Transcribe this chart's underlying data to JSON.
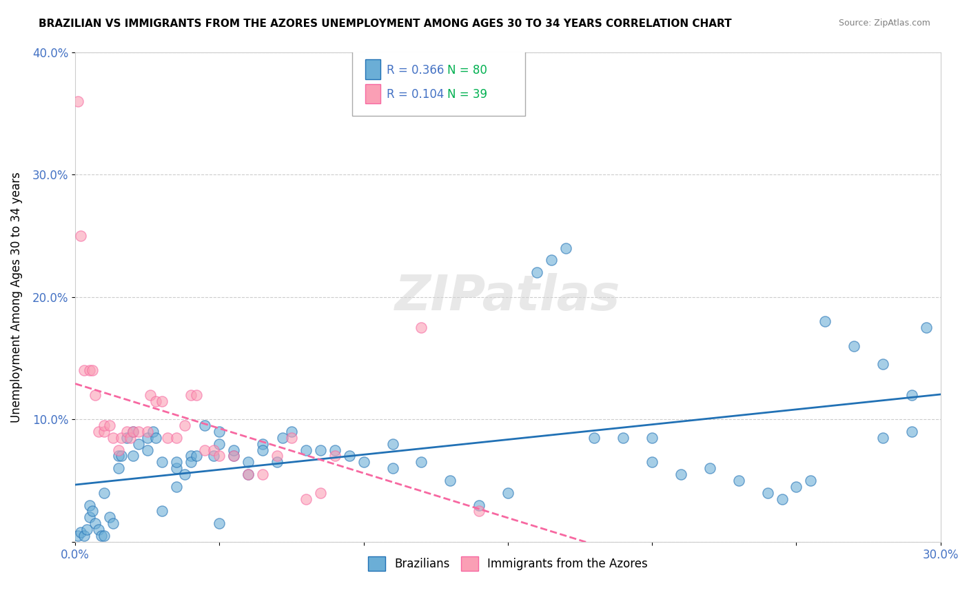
{
  "title": "BRAZILIAN VS IMMIGRANTS FROM THE AZORES UNEMPLOYMENT AMONG AGES 30 TO 34 YEARS CORRELATION CHART",
  "source": "Source: ZipAtlas.com",
  "ylabel": "Unemployment Among Ages 30 to 34 years",
  "xlabel": "",
  "xlim": [
    0,
    0.3
  ],
  "ylim": [
    0,
    0.4
  ],
  "xticks": [
    0.0,
    0.05,
    0.1,
    0.15,
    0.2,
    0.25,
    0.3
  ],
  "xtick_labels": [
    "0.0%",
    "",
    "",
    "",
    "",
    "",
    "30.0%"
  ],
  "yticks": [
    0.0,
    0.1,
    0.2,
    0.3,
    0.4
  ],
  "ytick_labels": [
    "",
    "10.0%",
    "20.0%",
    "30.0%",
    "40.0%"
  ],
  "watermark": "ZIPatlas",
  "legend_r1": "R = 0.366",
  "legend_n1": "N = 80",
  "legend_r2": "R = 0.104",
  "legend_n2": "N = 39",
  "color_blue": "#6baed6",
  "color_pink": "#fa9fb5",
  "line_color_blue": "#2171b5",
  "line_color_pink": "#f768a1",
  "blue_points": [
    [
      0.001,
      0.005
    ],
    [
      0.002,
      0.008
    ],
    [
      0.003,
      0.005
    ],
    [
      0.004,
      0.01
    ],
    [
      0.005,
      0.02
    ],
    [
      0.005,
      0.03
    ],
    [
      0.006,
      0.025
    ],
    [
      0.007,
      0.015
    ],
    [
      0.008,
      0.01
    ],
    [
      0.009,
      0.005
    ],
    [
      0.01,
      0.005
    ],
    [
      0.01,
      0.04
    ],
    [
      0.012,
      0.02
    ],
    [
      0.013,
      0.015
    ],
    [
      0.015,
      0.07
    ],
    [
      0.015,
      0.06
    ],
    [
      0.016,
      0.07
    ],
    [
      0.018,
      0.085
    ],
    [
      0.02,
      0.07
    ],
    [
      0.02,
      0.09
    ],
    [
      0.022,
      0.08
    ],
    [
      0.025,
      0.075
    ],
    [
      0.025,
      0.085
    ],
    [
      0.027,
      0.09
    ],
    [
      0.028,
      0.085
    ],
    [
      0.03,
      0.065
    ],
    [
      0.03,
      0.025
    ],
    [
      0.035,
      0.06
    ],
    [
      0.035,
      0.065
    ],
    [
      0.035,
      0.045
    ],
    [
      0.038,
      0.055
    ],
    [
      0.04,
      0.07
    ],
    [
      0.04,
      0.065
    ],
    [
      0.042,
      0.07
    ],
    [
      0.045,
      0.095
    ],
    [
      0.048,
      0.07
    ],
    [
      0.05,
      0.08
    ],
    [
      0.05,
      0.09
    ],
    [
      0.055,
      0.07
    ],
    [
      0.055,
      0.075
    ],
    [
      0.06,
      0.055
    ],
    [
      0.06,
      0.065
    ],
    [
      0.065,
      0.08
    ],
    [
      0.065,
      0.075
    ],
    [
      0.07,
      0.065
    ],
    [
      0.072,
      0.085
    ],
    [
      0.075,
      0.09
    ],
    [
      0.08,
      0.075
    ],
    [
      0.085,
      0.075
    ],
    [
      0.09,
      0.075
    ],
    [
      0.095,
      0.07
    ],
    [
      0.1,
      0.065
    ],
    [
      0.11,
      0.06
    ],
    [
      0.12,
      0.065
    ],
    [
      0.13,
      0.05
    ],
    [
      0.14,
      0.03
    ],
    [
      0.15,
      0.04
    ],
    [
      0.16,
      0.22
    ],
    [
      0.165,
      0.23
    ],
    [
      0.17,
      0.24
    ],
    [
      0.18,
      0.085
    ],
    [
      0.19,
      0.085
    ],
    [
      0.2,
      0.065
    ],
    [
      0.2,
      0.085
    ],
    [
      0.21,
      0.055
    ],
    [
      0.22,
      0.06
    ],
    [
      0.23,
      0.05
    ],
    [
      0.24,
      0.04
    ],
    [
      0.245,
      0.035
    ],
    [
      0.25,
      0.045
    ],
    [
      0.255,
      0.05
    ],
    [
      0.26,
      0.18
    ],
    [
      0.27,
      0.16
    ],
    [
      0.28,
      0.145
    ],
    [
      0.28,
      0.085
    ],
    [
      0.29,
      0.09
    ],
    [
      0.29,
      0.12
    ],
    [
      0.295,
      0.175
    ],
    [
      0.11,
      0.08
    ],
    [
      0.05,
      0.015
    ]
  ],
  "pink_points": [
    [
      0.001,
      0.36
    ],
    [
      0.002,
      0.25
    ],
    [
      0.003,
      0.14
    ],
    [
      0.005,
      0.14
    ],
    [
      0.006,
      0.14
    ],
    [
      0.007,
      0.12
    ],
    [
      0.008,
      0.09
    ],
    [
      0.01,
      0.09
    ],
    [
      0.01,
      0.095
    ],
    [
      0.012,
      0.095
    ],
    [
      0.013,
      0.085
    ],
    [
      0.015,
      0.075
    ],
    [
      0.016,
      0.085
    ],
    [
      0.018,
      0.09
    ],
    [
      0.019,
      0.085
    ],
    [
      0.02,
      0.09
    ],
    [
      0.022,
      0.09
    ],
    [
      0.025,
      0.09
    ],
    [
      0.026,
      0.12
    ],
    [
      0.028,
      0.115
    ],
    [
      0.03,
      0.115
    ],
    [
      0.032,
      0.085
    ],
    [
      0.035,
      0.085
    ],
    [
      0.038,
      0.095
    ],
    [
      0.04,
      0.12
    ],
    [
      0.042,
      0.12
    ],
    [
      0.045,
      0.075
    ],
    [
      0.048,
      0.075
    ],
    [
      0.05,
      0.07
    ],
    [
      0.055,
      0.07
    ],
    [
      0.06,
      0.055
    ],
    [
      0.065,
      0.055
    ],
    [
      0.07,
      0.07
    ],
    [
      0.075,
      0.085
    ],
    [
      0.08,
      0.035
    ],
    [
      0.085,
      0.04
    ],
    [
      0.09,
      0.07
    ],
    [
      0.12,
      0.175
    ],
    [
      0.14,
      0.025
    ]
  ]
}
